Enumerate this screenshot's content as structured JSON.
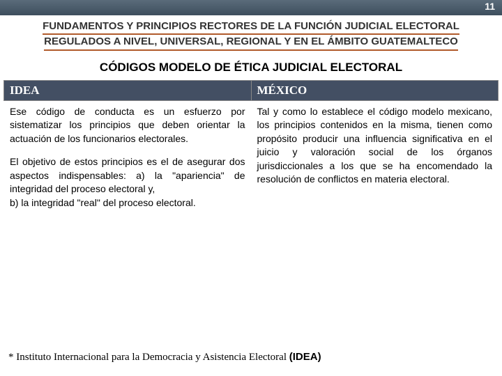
{
  "page_number": "11",
  "header": {
    "line1": "FUNDAMENTOS Y PRINCIPIOS RECTORES DE LA FUNCIÓN JUDICIAL ELECTORAL",
    "line2": "REGULADOS A NIVEL, UNIVERSAL, REGIONAL Y EN EL ÁMBITO GUATEMALTECO",
    "underline_color": "#b05a2a",
    "text_color": "#333333"
  },
  "subtitle": "CÓDIGOS MODELO DE ÉTICA JUDICIAL ELECTORAL",
  "table": {
    "header_bg": "#434f63",
    "header_fg": "#ffffff",
    "columns": [
      {
        "label": "IDEA"
      },
      {
        "label": "MÉXICO"
      }
    ],
    "cells": {
      "left_p1": "Ese código de conducta es un esfuerzo por sistematizar los principios que deben orientar la actuación de los funcionarios electorales.",
      "left_p2": "El objetivo de estos principios es el de asegurar dos aspectos indispensables: a) la \"apariencia\" de integridad del proceso electoral y,",
      "left_p3": "b) la integridad \"real\" del proceso electoral.",
      "right_p1": "Tal y como lo establece el código modelo mexicano, los principios contenidos en la misma, tienen como propósito producir una influencia significativa en el juicio y valoración social de los órganos jurisdiccionales a los que se ha encomendado la resolución de conflictos en materia electoral."
    }
  },
  "footnote": {
    "text": "* Instituto Internacional para la Democracia y Asistencia Electoral ",
    "bold": "(IDEA)"
  },
  "colors": {
    "topbar_start": "#5a6b7a",
    "topbar_end": "#3d4e5d",
    "background": "#ffffff"
  }
}
